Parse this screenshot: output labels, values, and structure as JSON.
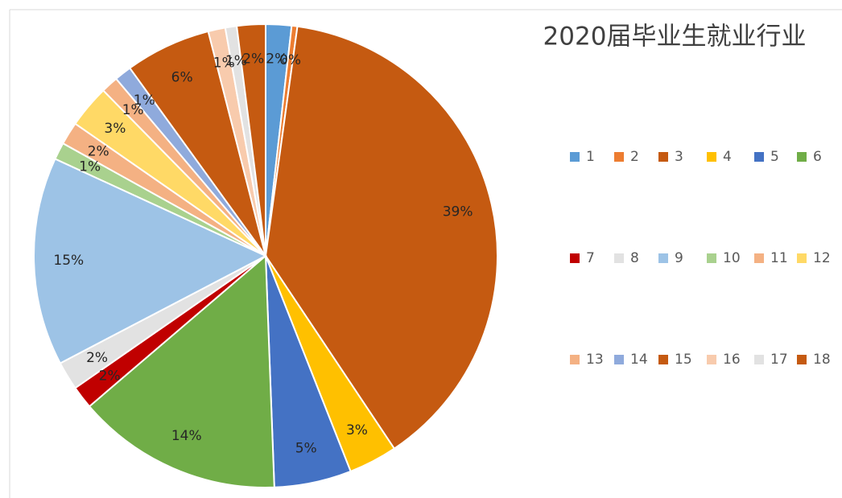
{
  "chart_data": {
    "type": "pie",
    "title": "2020届毕业生就业行业",
    "categories": [
      "1",
      "2",
      "3",
      "4",
      "5",
      "6",
      "7",
      "8",
      "9",
      "10",
      "11",
      "12",
      "13",
      "14",
      "15",
      "16",
      "17",
      "18"
    ],
    "values": [
      1.8,
      0.4,
      38.6,
      3.4,
      5.4,
      14.4,
      1.6,
      2,
      14.6,
      1.2,
      1.6,
      3,
      1.2,
      1.2,
      6,
      1.2,
      0.8,
      2
    ],
    "value_labels": [
      "2%",
      "0%",
      "39%",
      "3%",
      "5%",
      "14%",
      "2%",
      "2%",
      "15%",
      "1%",
      "2%",
      "3%",
      "1%",
      "1%",
      "6%",
      "1%",
      "1%",
      "2%"
    ],
    "colors": [
      "#5b9bd5",
      "#ed7d31",
      "#c55a11",
      "#ffc000",
      "#4472c4",
      "#70ad47",
      "#c00000",
      "#e2e2e2",
      "#9dc3e6",
      "#a9d18e",
      "#f4b183",
      "#ffd966",
      "#f4b183",
      "#8faadc",
      "#c55a11",
      "#f8cbad",
      "#e2e2e2",
      "#c55a11"
    ],
    "legend": "right"
  }
}
